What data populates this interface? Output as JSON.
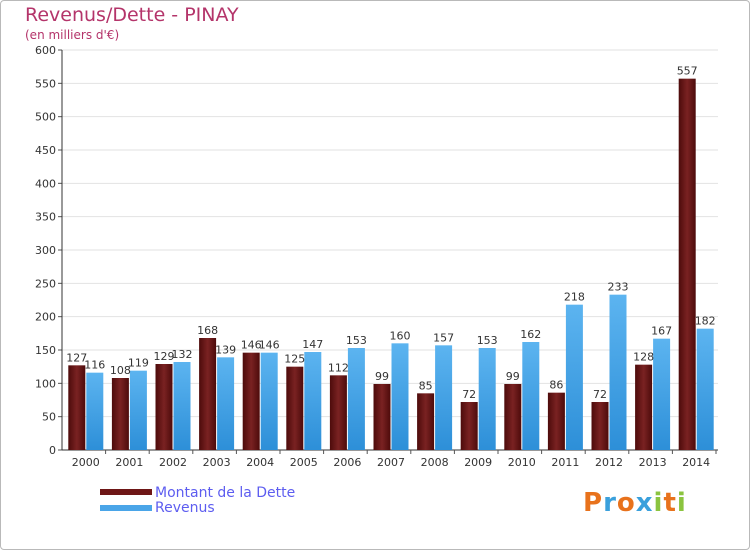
{
  "title": "Revenus/Dette - PINAY",
  "subtitle": "(en milliers d'€)",
  "legend": [
    {
      "label": "Montant de la Dette",
      "color": "#6e1616"
    },
    {
      "label": "Revenus",
      "color": "#4aa5e8"
    }
  ],
  "logo": {
    "letters": [
      "P",
      "r",
      "o",
      "x",
      "i",
      "t",
      "i"
    ],
    "colors": [
      "#e8721c",
      "#3aa0dc",
      "#e8721c",
      "#3aa0dc",
      "#8bc43f",
      "#e8721c",
      "#8bc43f"
    ]
  },
  "chart_data": {
    "type": "bar",
    "categories": [
      "2000",
      "2001",
      "2002",
      "2003",
      "2004",
      "2005",
      "2006",
      "2007",
      "2008",
      "2009",
      "2010",
      "2011",
      "2012",
      "2013",
      "2014"
    ],
    "series": [
      {
        "name": "Montant de la Dette",
        "values": [
          127,
          108,
          129,
          168,
          146,
          125,
          112,
          99,
          85,
          72,
          99,
          86,
          72,
          128,
          557
        ]
      },
      {
        "name": "Revenus",
        "values": [
          116,
          119,
          132,
          139,
          146,
          147,
          153,
          160,
          157,
          153,
          162,
          218,
          233,
          167,
          182
        ]
      }
    ],
    "ylim": [
      0,
      600
    ],
    "yticks": [
      0,
      50,
      100,
      150,
      200,
      250,
      300,
      350,
      400,
      450,
      500,
      550,
      600
    ],
    "grid": true
  }
}
